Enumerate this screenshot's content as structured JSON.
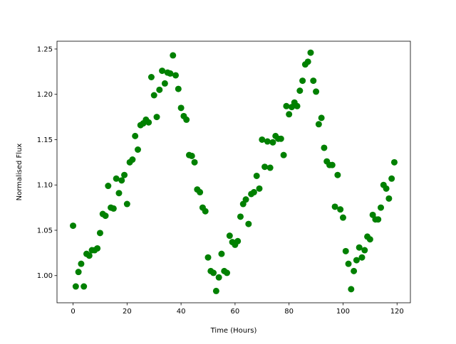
{
  "chart_data": {
    "type": "scatter",
    "xlabel": "Time (Hours)",
    "ylabel": "Normalised Flux",
    "color": "#008000",
    "x": [
      0,
      1,
      2,
      3,
      4,
      5,
      6,
      7,
      8,
      9,
      10,
      11,
      12,
      13,
      14,
      15,
      16,
      17,
      18,
      19,
      20,
      21,
      22,
      23,
      24,
      25,
      26,
      27,
      28,
      29,
      30,
      31,
      32,
      33,
      34,
      35,
      36,
      37,
      38,
      39,
      40,
      41,
      42,
      43,
      44,
      45,
      46,
      47,
      48,
      49,
      50,
      51,
      52,
      53,
      54,
      55,
      56,
      57,
      58,
      59,
      60,
      61,
      62,
      63,
      64,
      65,
      66,
      67,
      68,
      69,
      70,
      71,
      72,
      73,
      74,
      75,
      76,
      77,
      78,
      79,
      80,
      81,
      82,
      83,
      84,
      85,
      86,
      87,
      88,
      89,
      90,
      91,
      92,
      93,
      94,
      95,
      96,
      97,
      98,
      99,
      100,
      101,
      102,
      103,
      104,
      105,
      106,
      107,
      108,
      109,
      110,
      111,
      112,
      113,
      114,
      115,
      116,
      117,
      118,
      119
    ],
    "values": [
      1.055,
      0.988,
      1.004,
      1.013,
      0.988,
      1.024,
      1.022,
      1.028,
      1.028,
      1.03,
      1.047,
      1.068,
      1.066,
      1.099,
      1.075,
      1.074,
      1.107,
      1.091,
      1.105,
      1.111,
      1.079,
      1.125,
      1.128,
      1.154,
      1.139,
      1.166,
      1.168,
      1.172,
      1.169,
      1.219,
      1.199,
      1.175,
      1.205,
      1.226,
      1.212,
      1.224,
      1.223,
      1.243,
      1.221,
      1.206,
      1.185,
      1.176,
      1.172,
      1.133,
      1.132,
      1.125,
      1.095,
      1.092,
      1.075,
      1.071,
      1.02,
      1.005,
      1.003,
      0.983,
      0.998,
      1.024,
      1.005,
      1.003,
      1.044,
      1.037,
      1.034,
      1.038,
      1.065,
      1.079,
      1.084,
      1.057,
      1.09,
      1.092,
      1.11,
      1.096,
      1.15,
      1.12,
      1.148,
      1.119,
      1.147,
      1.154,
      1.151,
      1.151,
      1.133,
      1.187,
      1.178,
      1.186,
      1.191,
      1.187,
      1.204,
      1.215,
      1.233,
      1.236,
      1.246,
      1.215,
      1.203,
      1.167,
      1.174,
      1.141,
      1.126,
      1.122,
      1.122,
      1.076,
      1.111,
      1.073,
      1.064,
      1.027,
      1.013,
      0.985,
      1.005,
      1.017,
      1.031,
      1.02,
      1.028,
      1.043,
      1.04,
      1.067,
      1.062,
      1.062,
      1.075,
      1.1,
      1.096,
      1.085,
      1.107,
      1.125
    ],
    "xlim": [
      -5.95,
      124.95
    ],
    "xticks": [
      0,
      20,
      40,
      60,
      80,
      100,
      120
    ],
    "ylim": [
      0.97,
      1.2586
    ],
    "yticks": [
      {
        "value": 1.0,
        "label": "1.00"
      },
      1.05,
      {
        "value": 1.1,
        "label": "1.10"
      },
      1.15,
      {
        "value": 1.2,
        "label": "1.20"
      },
      1.25
    ]
  }
}
